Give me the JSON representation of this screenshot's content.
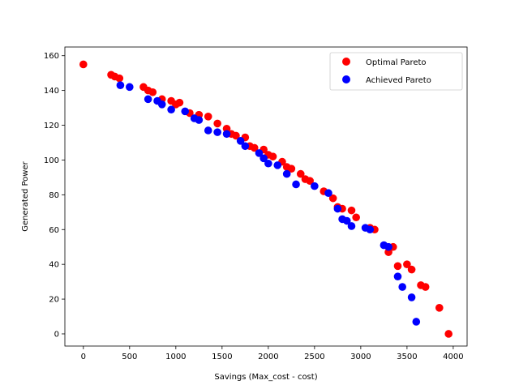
{
  "chart_data": {
    "type": "scatter",
    "title": "",
    "xlabel": "Savings (Max_cost - cost)",
    "ylabel": "Generated Power",
    "xlim": [
      -200,
      4150
    ],
    "ylim": [
      -7,
      165
    ],
    "xticks": [
      0,
      500,
      1000,
      1500,
      2000,
      2500,
      3000,
      3500,
      4000
    ],
    "yticks": [
      0,
      20,
      40,
      60,
      80,
      100,
      120,
      140,
      160
    ],
    "grid": false,
    "legend_position": "top-right",
    "series": [
      {
        "name": "Optimal Pareto",
        "color": "#ff0000",
        "points": [
          [
            0,
            155
          ],
          [
            300,
            149
          ],
          [
            340,
            148
          ],
          [
            390,
            147
          ],
          [
            650,
            142
          ],
          [
            700,
            140
          ],
          [
            750,
            139
          ],
          [
            850,
            135
          ],
          [
            950,
            134
          ],
          [
            1000,
            132
          ],
          [
            1040,
            133
          ],
          [
            1150,
            127
          ],
          [
            1250,
            126
          ],
          [
            1350,
            125
          ],
          [
            1450,
            121
          ],
          [
            1550,
            118
          ],
          [
            1600,
            115
          ],
          [
            1650,
            114
          ],
          [
            1750,
            113
          ],
          [
            1800,
            108
          ],
          [
            1850,
            107
          ],
          [
            1950,
            106
          ],
          [
            2000,
            103
          ],
          [
            2050,
            102
          ],
          [
            2150,
            99
          ],
          [
            2200,
            96
          ],
          [
            2250,
            95
          ],
          [
            2350,
            92
          ],
          [
            2400,
            89
          ],
          [
            2450,
            88
          ],
          [
            2600,
            82
          ],
          [
            2700,
            78
          ],
          [
            2750,
            73
          ],
          [
            2800,
            72
          ],
          [
            2900,
            71
          ],
          [
            2950,
            67
          ],
          [
            3100,
            61
          ],
          [
            3150,
            60
          ],
          [
            3300,
            47
          ],
          [
            3350,
            50
          ],
          [
            3400,
            39
          ],
          [
            3500,
            40
          ],
          [
            3550,
            37
          ],
          [
            3650,
            28
          ],
          [
            3700,
            27
          ],
          [
            3850,
            15
          ],
          [
            3950,
            0
          ]
        ]
      },
      {
        "name": "Achieved Pareto",
        "color": "#0000ff",
        "points": [
          [
            400,
            143
          ],
          [
            500,
            142
          ],
          [
            700,
            135
          ],
          [
            800,
            134
          ],
          [
            850,
            132
          ],
          [
            950,
            129
          ],
          [
            1100,
            128
          ],
          [
            1200,
            124
          ],
          [
            1250,
            123
          ],
          [
            1350,
            117
          ],
          [
            1450,
            116
          ],
          [
            1550,
            115
          ],
          [
            1700,
            111
          ],
          [
            1750,
            108
          ],
          [
            1900,
            104
          ],
          [
            1950,
            101
          ],
          [
            2000,
            98
          ],
          [
            2100,
            97
          ],
          [
            2200,
            92
          ],
          [
            2300,
            86
          ],
          [
            2500,
            85
          ],
          [
            2650,
            81
          ],
          [
            2750,
            72
          ],
          [
            2800,
            66
          ],
          [
            2850,
            65
          ],
          [
            2900,
            62
          ],
          [
            3050,
            61
          ],
          [
            3100,
            60
          ],
          [
            3250,
            51
          ],
          [
            3300,
            50
          ],
          [
            3400,
            33
          ],
          [
            3450,
            27
          ],
          [
            3550,
            21
          ],
          [
            3600,
            7
          ]
        ]
      }
    ]
  }
}
